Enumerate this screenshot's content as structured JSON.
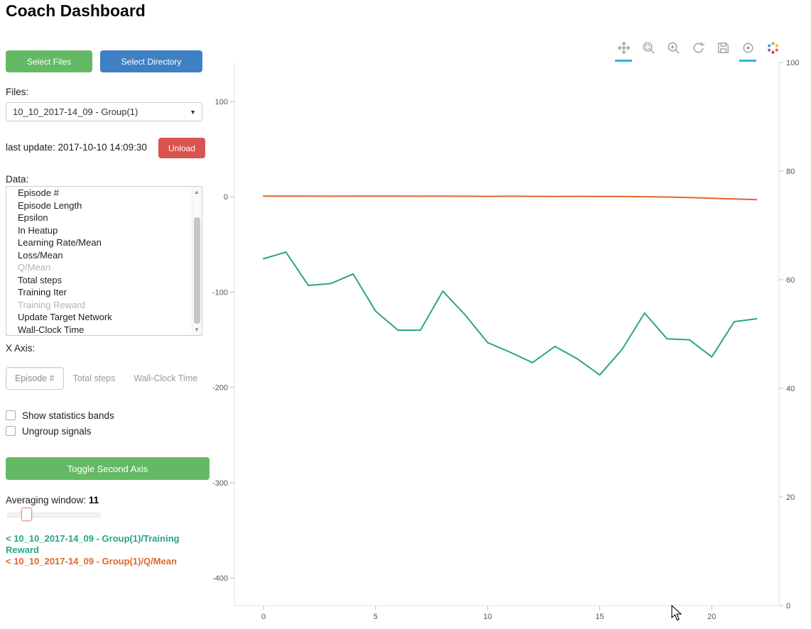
{
  "header": {
    "title": "Coach Dashboard"
  },
  "sidebar": {
    "select_files": "Select Files",
    "select_directory": "Select Directory",
    "files_label": "Files:",
    "files_value": "10_10_2017-14_09 - Group(1)",
    "last_update": "last update: 2017-10-10 14:09:30",
    "unload": "Unload",
    "data_label": "Data:",
    "data_items": [
      {
        "label": "Episode #",
        "dimmed": false
      },
      {
        "label": "Episode Length",
        "dimmed": false
      },
      {
        "label": "Epsilon",
        "dimmed": false
      },
      {
        "label": "In Heatup",
        "dimmed": false
      },
      {
        "label": "Learning Rate/Mean",
        "dimmed": false
      },
      {
        "label": "Loss/Mean",
        "dimmed": false
      },
      {
        "label": "Q/Mean",
        "dimmed": true
      },
      {
        "label": "Total steps",
        "dimmed": false
      },
      {
        "label": "Training Iter",
        "dimmed": false
      },
      {
        "label": "Training Reward",
        "dimmed": true
      },
      {
        "label": "Update Target Network",
        "dimmed": false
      },
      {
        "label": "Wall-Clock Time",
        "dimmed": false
      }
    ],
    "x_axis_label": "X Axis:",
    "x_axis_options": [
      {
        "label": "Episode #",
        "active": true
      },
      {
        "label": "Total steps",
        "active": false
      },
      {
        "label": "Wall-Clock Time",
        "active": false
      }
    ],
    "checkboxes": [
      {
        "label": "Show statistics bands",
        "checked": false
      },
      {
        "label": "Ungroup signals",
        "checked": false
      }
    ],
    "toggle_second_axis": "Toggle Second Axis",
    "averaging_label": "Averaging window:",
    "averaging_value": "11",
    "legend": [
      {
        "text": "< 10_10_2017-14_09 - Group(1)/Training Reward",
        "color": "#2aa38a"
      },
      {
        "text": "< 10_10_2017-14_09 - Group(1)/Q/Mean",
        "color": "#e0672c"
      }
    ]
  },
  "toolbar": {
    "tools": [
      {
        "name": "pan",
        "active": true
      },
      {
        "name": "box-zoom",
        "active": false
      },
      {
        "name": "wheel-zoom",
        "active": false
      },
      {
        "name": "reset",
        "active": false
      },
      {
        "name": "save",
        "active": false
      },
      {
        "name": "hover",
        "active": true
      },
      {
        "name": "bokeh-logo",
        "active": false
      }
    ]
  },
  "chart_data": {
    "type": "line",
    "title": "",
    "xlabel": "Episode #",
    "ylabel": "",
    "grid": false,
    "legend_position": "sidebar",
    "x": [
      0,
      1,
      2,
      3,
      4,
      5,
      6,
      7,
      8,
      9,
      10,
      11,
      12,
      13,
      14,
      15,
      16,
      17,
      18,
      19,
      20,
      21,
      22
    ],
    "series": [
      {
        "name": "10_10_2017-14_09 - Group(1)/Training Reward",
        "color": "#2aa38a",
        "axis": "left",
        "values": [
          -65,
          -58,
          -93,
          -91,
          -81,
          -120,
          -140,
          -140,
          -99,
          -124,
          -153,
          -163,
          -174,
          -157,
          -170,
          -187,
          -160,
          -122,
          -149,
          -150,
          -168,
          -131,
          -128
        ]
      },
      {
        "name": "10_10_2017-14_09 - Group(1)/Q/Mean",
        "color": "#e0672c",
        "axis": "left",
        "values": [
          0.8,
          0.7,
          0.8,
          0.6,
          0.7,
          0.8,
          0.7,
          0.6,
          0.7,
          0.6,
          0.5,
          0.6,
          0.5,
          0.4,
          0.5,
          0.4,
          0.3,
          0.1,
          -0.2,
          -0.8,
          -1.5,
          -2.2,
          -3.0
        ]
      }
    ],
    "x_axis": {
      "ticks": [
        0,
        5,
        10,
        15,
        20
      ],
      "range": [
        -1.3,
        23
      ]
    },
    "left_axis": {
      "ticks": [
        100,
        0,
        -100,
        -200,
        -300,
        -400
      ],
      "range": [
        -429,
        141
      ]
    },
    "right_axis": {
      "ticks": [
        100,
        80,
        60,
        40,
        20,
        0
      ],
      "range": [
        0,
        100
      ]
    }
  }
}
